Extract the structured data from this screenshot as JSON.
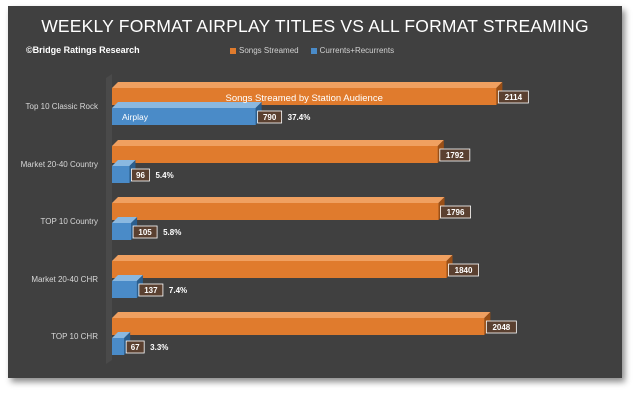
{
  "chart_data": {
    "type": "bar",
    "orientation": "horizontal",
    "title": "WEEKLY FORMAT AIRPLAY TITLES VS ALL FORMAT STREAMING",
    "credit": "©Bridge Ratings Research",
    "categories": [
      "Top 10 Classic Rock",
      "Market 20-40 Country",
      "TOP 10 Country",
      "Market 20-40 CHR",
      "TOP 10 CHR"
    ],
    "series": [
      {
        "name": "Songs Streamed",
        "color": "#E07B2D",
        "values": [
          2114,
          1792,
          1796,
          1840,
          2048
        ]
      },
      {
        "name": "Currents+Recurrents",
        "color": "#4A8BC8",
        "values": [
          790,
          96,
          105,
          137,
          67
        ]
      }
    ],
    "percent_labels": [
      "37.4%",
      "5.4%",
      "5.8%",
      "7.4%",
      "3.3%"
    ],
    "annotations": {
      "streamed_bar_text": "Songs Streamed by Station Audience",
      "airplay_bar_text": "Airplay"
    },
    "xlim": [
      0,
      2200
    ],
    "grid": false,
    "legend_position": "top-center"
  }
}
